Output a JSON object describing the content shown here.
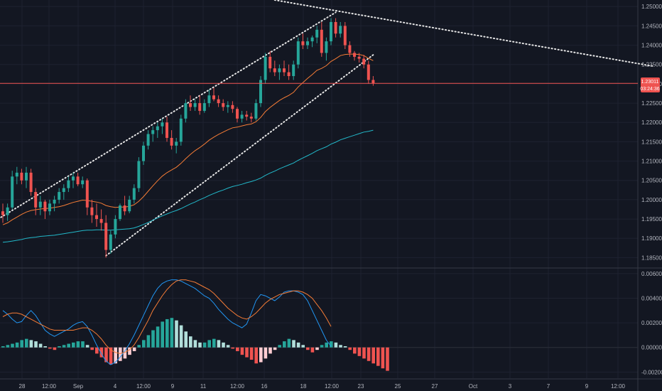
{
  "chart_data": [
    {
      "type": "candlestick",
      "y_axis": {
        "ticks": [
          "1.25000",
          "1.24500",
          "1.24000",
          "1.23500",
          "1.23000",
          "1.22500",
          "1.22000",
          "1.21500",
          "1.21000",
          "1.20500",
          "1.20000",
          "1.19500",
          "1.19000",
          "1.18500"
        ],
        "tick_values": [
          1.25,
          1.245,
          1.24,
          1.235,
          1.23,
          1.225,
          1.22,
          1.215,
          1.21,
          1.205,
          1.2,
          1.195,
          1.19,
          1.185
        ],
        "range": [
          1.1825,
          1.2517
        ]
      },
      "x_axis": {
        "ticks": [
          "28",
          "12:00",
          "Sep",
          "4",
          "12:00",
          "9",
          "11",
          "12:00",
          "16",
          "18",
          "12:00",
          "23",
          "25",
          "27",
          "Oct",
          "3",
          "7",
          "9",
          "12:00"
        ]
      },
      "last_price": "1.23011",
      "countdown": "03:24:36",
      "candles_ohlc": [
        [
          1.197,
          1.199,
          1.194,
          1.196
        ],
        [
          1.196,
          1.199,
          1.1945,
          1.198
        ],
        [
          1.198,
          1.2075,
          1.1975,
          1.206
        ],
        [
          1.206,
          1.2085,
          1.204,
          1.207
        ],
        [
          1.207,
          1.208,
          1.204,
          1.205
        ],
        [
          1.205,
          1.2085,
          1.203,
          1.207
        ],
        [
          1.207,
          1.208,
          1.201,
          1.202
        ],
        [
          1.202,
          1.203,
          1.196,
          1.198
        ],
        [
          1.198,
          1.201,
          1.196,
          1.1995
        ],
        [
          1.1995,
          1.2,
          1.195,
          1.197
        ],
        [
          1.197,
          1.2,
          1.196,
          1.199
        ],
        [
          1.199,
          1.201,
          1.197,
          1.2
        ],
        [
          1.2,
          1.203,
          1.199,
          1.202
        ],
        [
          1.202,
          1.204,
          1.2,
          1.203
        ],
        [
          1.203,
          1.206,
          1.202,
          1.205
        ],
        [
          1.205,
          1.207,
          1.203,
          1.206
        ],
        [
          1.206,
          1.207,
          1.2035,
          1.204
        ],
        [
          1.204,
          1.206,
          1.203,
          1.205
        ],
        [
          1.205,
          1.2055,
          1.196,
          1.198
        ],
        [
          1.198,
          1.2,
          1.194,
          1.196
        ],
        [
          1.196,
          1.199,
          1.193,
          1.195
        ],
        [
          1.195,
          1.1975,
          1.192,
          1.194
        ],
        [
          1.194,
          1.196,
          1.185,
          1.187
        ],
        [
          1.187,
          1.192,
          1.186,
          1.191
        ],
        [
          1.191,
          1.196,
          1.19,
          1.195
        ],
        [
          1.195,
          1.199,
          1.1945,
          1.1985
        ],
        [
          1.1985,
          1.201,
          1.196,
          1.197
        ],
        [
          1.197,
          1.201,
          1.1965,
          1.2
        ],
        [
          1.2,
          1.204,
          1.199,
          1.203
        ],
        [
          1.203,
          1.211,
          1.202,
          1.21
        ],
        [
          1.21,
          1.215,
          1.209,
          1.214
        ],
        [
          1.214,
          1.218,
          1.213,
          1.217
        ],
        [
          1.217,
          1.219,
          1.215,
          1.218
        ],
        [
          1.218,
          1.22,
          1.216,
          1.219
        ],
        [
          1.219,
          1.221,
          1.217,
          1.22
        ],
        [
          1.22,
          1.2215,
          1.215,
          1.216
        ],
        [
          1.216,
          1.218,
          1.213,
          1.214
        ],
        [
          1.214,
          1.216,
          1.212,
          1.215
        ],
        [
          1.215,
          1.222,
          1.214,
          1.221
        ],
        [
          1.221,
          1.226,
          1.22,
          1.225
        ],
        [
          1.225,
          1.227,
          1.223,
          1.224
        ],
        [
          1.224,
          1.226,
          1.223,
          1.225
        ],
        [
          1.225,
          1.227,
          1.222,
          1.223
        ],
        [
          1.223,
          1.226,
          1.2225,
          1.225
        ],
        [
          1.225,
          1.2285,
          1.224,
          1.227
        ],
        [
          1.227,
          1.229,
          1.2255,
          1.226
        ],
        [
          1.226,
          1.227,
          1.224,
          1.225
        ],
        [
          1.225,
          1.226,
          1.223,
          1.224
        ],
        [
          1.224,
          1.2255,
          1.2225,
          1.2245
        ],
        [
          1.2245,
          1.2255,
          1.2225,
          1.2235
        ],
        [
          1.2235,
          1.224,
          1.22,
          1.221
        ],
        [
          1.221,
          1.223,
          1.22,
          1.222
        ],
        [
          1.222,
          1.223,
          1.2205,
          1.2215
        ],
        [
          1.2215,
          1.2225,
          1.22,
          1.221
        ],
        [
          1.221,
          1.226,
          1.2205,
          1.225
        ],
        [
          1.225,
          1.232,
          1.224,
          1.231
        ],
        [
          1.231,
          1.238,
          1.23,
          1.237
        ],
        [
          1.237,
          1.2385,
          1.233,
          1.234
        ],
        [
          1.234,
          1.236,
          1.232,
          1.233
        ],
        [
          1.233,
          1.235,
          1.231,
          1.234
        ],
        [
          1.234,
          1.236,
          1.232,
          1.233
        ],
        [
          1.233,
          1.235,
          1.231,
          1.232
        ],
        [
          1.232,
          1.236,
          1.231,
          1.235
        ],
        [
          1.235,
          1.242,
          1.234,
          1.241
        ],
        [
          1.241,
          1.243,
          1.239,
          1.24
        ],
        [
          1.24,
          1.242,
          1.239,
          1.241
        ],
        [
          1.241,
          1.2425,
          1.2395,
          1.242
        ],
        [
          1.242,
          1.245,
          1.2405,
          1.244
        ],
        [
          1.244,
          1.246,
          1.237,
          1.238
        ],
        [
          1.238,
          1.242,
          1.236,
          1.241
        ],
        [
          1.241,
          1.247,
          1.24,
          1.246
        ],
        [
          1.246,
          1.247,
          1.242,
          1.243
        ],
        [
          1.243,
          1.246,
          1.242,
          1.245
        ],
        [
          1.245,
          1.246,
          1.239,
          1.24
        ],
        [
          1.24,
          1.241,
          1.237,
          1.238
        ],
        [
          1.238,
          1.2385,
          1.236,
          1.237
        ],
        [
          1.237,
          1.238,
          1.2355,
          1.2365
        ],
        [
          1.2365,
          1.2375,
          1.234,
          1.235
        ],
        [
          1.235,
          1.236,
          1.23,
          1.231
        ],
        [
          1.231,
          1.232,
          1.2295,
          1.2301
        ]
      ],
      "ema_orange": [
        1.1935,
        1.194,
        1.1948,
        1.1955,
        1.1962,
        1.1968,
        1.1972,
        1.1974,
        1.1976,
        1.1977,
        1.1978,
        1.198,
        1.1982,
        1.1985,
        1.1989,
        1.1993,
        1.1996,
        1.1999,
        1.1998,
        1.1996,
        1.1994,
        1.1991,
        1.1985,
        1.1982,
        1.198,
        1.1981,
        1.1981,
        1.1983,
        1.1987,
        1.1996,
        1.2008,
        1.2022,
        1.2036,
        1.2049,
        1.2061,
        1.207,
        1.2077,
        1.2084,
        1.2094,
        1.2106,
        1.2117,
        1.2127,
        1.2135,
        1.2144,
        1.2154,
        1.2162,
        1.2169,
        1.2175,
        1.2181,
        1.2186,
        1.2188,
        1.2191,
        1.2194,
        1.2196,
        1.2202,
        1.2213,
        1.2228,
        1.2239,
        1.2248,
        1.2257,
        1.2264,
        1.227,
        1.2278,
        1.2292,
        1.2303,
        1.2314,
        1.2324,
        1.2335,
        1.234,
        1.2347,
        1.2358,
        1.2365,
        1.2373,
        1.2376,
        1.2377,
        1.2377,
        1.2376,
        1.2373,
        1.2366,
        1.236
      ],
      "ema_teal": [
        1.189,
        1.1891,
        1.1893,
        1.1895,
        1.1897,
        1.19,
        1.1902,
        1.1903,
        1.1905,
        1.1906,
        1.1907,
        1.1908,
        1.191,
        1.1912,
        1.1914,
        1.1916,
        1.1918,
        1.192,
        1.1921,
        1.1921,
        1.1922,
        1.1922,
        1.1921,
        1.1921,
        1.1922,
        1.1923,
        1.1924,
        1.1925,
        1.1927,
        1.1931,
        1.1936,
        1.1941,
        1.1947,
        1.1953,
        1.1958,
        1.1963,
        1.1968,
        1.1972,
        1.1977,
        1.1983,
        1.1989,
        1.1994,
        1.2,
        1.2005,
        1.2011,
        1.2016,
        1.2021,
        1.2025,
        1.203,
        1.2034,
        1.2037,
        1.204,
        1.2044,
        1.2047,
        1.2051,
        1.2056,
        1.2063,
        1.2069,
        1.2074,
        1.208,
        1.2085,
        1.209,
        1.2095,
        1.2102,
        1.2108,
        1.2114,
        1.212,
        1.2127,
        1.2132,
        1.2137,
        1.2144,
        1.2149,
        1.2155,
        1.2159,
        1.2163,
        1.2167,
        1.2171,
        1.2175,
        1.2177,
        1.218
      ],
      "trendlines": [
        {
          "from": [
            22,
            1.1855
          ],
          "to": [
            79,
            1.2375
          ],
          "style": "dotted"
        },
        {
          "from": [
            -1,
            1.195
          ],
          "to": [
            71,
            1.2485
          ],
          "style": "dotted"
        },
        {
          "from": [
            58,
            1.2517
          ],
          "to": [
            139,
            1.2345
          ],
          "style": "dotted"
        }
      ],
      "horizontal_line": 1.23011
    },
    {
      "type": "macd",
      "y_axis": {
        "ticks": [
          "0.00600",
          "0.00400",
          "0.00200",
          "0.00000",
          "-0.00200"
        ],
        "tick_values": [
          0.006,
          0.004,
          0.002,
          0.0,
          -0.002
        ],
        "range": [
          -0.0025,
          0.0064
        ]
      },
      "histogram": [
        0.0001,
        0.0002,
        0.0003,
        0.0004,
        0.0006,
        0.0007,
        0.0006,
        0.0005,
        0.0003,
        0.0001,
        -0.0001,
        -0.0002,
        0.0001,
        0.0002,
        0.0003,
        0.0004,
        0.0005,
        0.0005,
        0.0002,
        -0.0002,
        -0.0005,
        -0.0008,
        -0.0012,
        -0.0014,
        -0.0013,
        -0.0011,
        -0.0009,
        -0.0006,
        -0.0003,
        0.0002,
        0.0006,
        0.001,
        0.0014,
        0.0017,
        0.0021,
        0.0023,
        0.0024,
        0.0022,
        0.0018,
        0.0013,
        0.0009,
        0.0006,
        0.0004,
        0.0004,
        0.0006,
        0.0007,
        0.0006,
        0.0004,
        0.0002,
        -0.0001,
        -0.0003,
        -0.0006,
        -0.0008,
        -0.001,
        -0.0013,
        -0.0012,
        -0.0009,
        -0.0005,
        -0.0002,
        0.0002,
        0.0005,
        0.0007,
        0.0006,
        0.0004,
        0.0002,
        -0.0002,
        -0.0004,
        -0.0002,
        0.0002,
        0.0004,
        0.0005,
        0.0004,
        0.0002,
        0.0001,
        -0.0002,
        -0.0005,
        -0.0007,
        -0.0009,
        -0.0011,
        -0.0013,
        -0.0015,
        -0.0017,
        -0.0019
      ],
      "macd_blue": [
        0.003,
        0.0027,
        0.0023,
        0.002,
        0.0021,
        0.0026,
        0.003,
        0.0026,
        0.002,
        0.0014,
        0.0011,
        0.0009,
        0.0011,
        0.0013,
        0.0015,
        0.0018,
        0.002,
        0.0021,
        0.0017,
        0.001,
        0.0002,
        -0.0005,
        -0.0011,
        -0.0014,
        -0.0012,
        -0.0008,
        -0.0003,
        0.0003,
        0.001,
        0.0018,
        0.0026,
        0.0034,
        0.0042,
        0.0048,
        0.0052,
        0.0054,
        0.0055,
        0.0055,
        0.0054,
        0.0052,
        0.005,
        0.0048,
        0.0045,
        0.0042,
        0.004,
        0.0036,
        0.0031,
        0.0027,
        0.0023,
        0.002,
        0.0018,
        0.0016,
        0.0019,
        0.0028,
        0.0038,
        0.0043,
        0.0042,
        0.004,
        0.0038,
        0.0041,
        0.0045,
        0.0046,
        0.0046,
        0.0045,
        0.0043,
        0.0038,
        0.003,
        0.0022,
        0.0014,
        0.0006,
        0.0001
      ],
      "signal_orange": [
        0.0025,
        0.0027,
        0.0028,
        0.0028,
        0.0027,
        0.0025,
        0.0023,
        0.0021,
        0.0019,
        0.0017,
        0.0015,
        0.0014,
        0.0014,
        0.0014,
        0.0014,
        0.0014,
        0.0015,
        0.0016,
        0.0016,
        0.0014,
        0.0011,
        0.0007,
        0.0002,
        -0.0002,
        -0.0004,
        -0.0005,
        -0.0004,
        -0.0002,
        0.0002,
        0.0008,
        0.0015,
        0.0022,
        0.003,
        0.0036,
        0.0042,
        0.0047,
        0.0051,
        0.0054,
        0.0055,
        0.0055,
        0.0054,
        0.0053,
        0.0051,
        0.0049,
        0.0047,
        0.0044,
        0.004,
        0.0036,
        0.0032,
        0.0029,
        0.0026,
        0.0024,
        0.0023,
        0.0025,
        0.0028,
        0.0032,
        0.0036,
        0.0039,
        0.0041,
        0.0043,
        0.0044,
        0.0045,
        0.0046,
        0.0046,
        0.0045,
        0.0043,
        0.004,
        0.0035,
        0.003,
        0.0024,
        0.0017
      ]
    }
  ],
  "colors": {
    "background": "#131722",
    "grid": "#1e2230",
    "up": "#26a69a",
    "down": "#ef5350",
    "ema_orange": "#f57c36",
    "ema_teal": "#22b8c9",
    "macd_blue": "#2196f3",
    "signal_orange": "#f57c36",
    "hist_up_strong": "#26a69a",
    "hist_up_weak": "#b2dfdb",
    "hist_down_strong": "#ef5350",
    "hist_down_weak": "#ffcdd2",
    "axis_text": "#b2b5be",
    "pane_divider": "#363a45",
    "price_tag": "#ef5350"
  }
}
